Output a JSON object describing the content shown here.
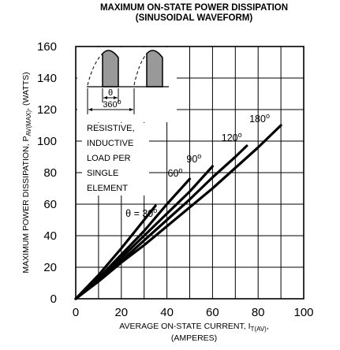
{
  "chart_data": {
    "type": "line",
    "title": "MAXIMUM ON-STATE POWER DISSIPATION",
    "subtitle": "(SINUSOIDAL WAVEFORM)",
    "ylabel": {
      "main": "MAXIMUM POWER DISSIPATION, P",
      "sub": "AV(MAX)",
      "unit": ", (WATTS)"
    },
    "xlabel": {
      "main": "AVERAGE ON-STATE  CURRENT, I",
      "sub": "T(AV)",
      "tail": ",",
      "unit": "(AMPERES)"
    },
    "xlim": [
      0,
      100
    ],
    "ylim": [
      0,
      160
    ],
    "x_ticks": [
      "0",
      "20",
      "40",
      "60",
      "80",
      "100"
    ],
    "y_ticks": [
      "0",
      "20",
      "40",
      "60",
      "80",
      "100",
      "120",
      "140",
      "160"
    ],
    "grid": true,
    "annotation_lines": [
      "RESISTIVE,",
      "INDUCTIVE",
      "LOAD PER",
      "SINGLE",
      "ELEMENT"
    ],
    "inset": {
      "theta_label": "θ",
      "period_label": "360",
      "degree": "o"
    },
    "series": [
      {
        "name": "θ = 30",
        "degree": "o",
        "x": [
          0,
          10,
          20,
          30,
          35
        ],
        "y": [
          0,
          15,
          32,
          50,
          59
        ]
      },
      {
        "name": "60",
        "degree": "o",
        "x": [
          0,
          10,
          20,
          30,
          40,
          50
        ],
        "y": [
          0,
          13,
          28,
          43,
          60,
          76
        ]
      },
      {
        "name": "90",
        "degree": "o",
        "x": [
          0,
          10,
          20,
          30,
          40,
          50,
          60
        ],
        "y": [
          0,
          12,
          26,
          40,
          54,
          68,
          84
        ]
      },
      {
        "name": "120",
        "degree": "o",
        "x": [
          0,
          10,
          20,
          30,
          40,
          50,
          60,
          70,
          75
        ],
        "y": [
          0,
          12,
          24,
          37,
          50,
          63,
          77,
          90,
          97
        ]
      },
      {
        "name": "180",
        "degree": "o",
        "x": [
          0,
          10,
          20,
          30,
          40,
          50,
          60,
          70,
          80,
          90
        ],
        "y": [
          0,
          11,
          23,
          34,
          46,
          58,
          70,
          83,
          96,
          110
        ]
      }
    ]
  }
}
